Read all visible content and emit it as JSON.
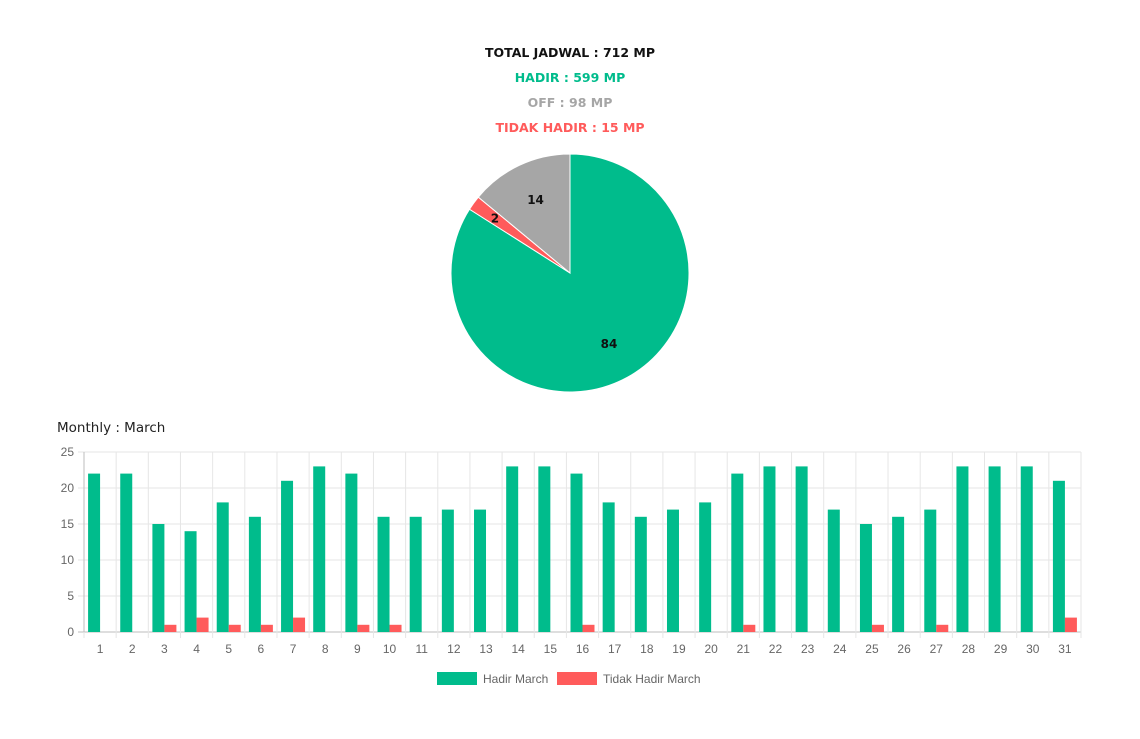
{
  "summary": {
    "total": "TOTAL JADWAL : 712 MP",
    "hadir": "HADIR : 599 MP",
    "off": "OFF : 98 MP",
    "tidak_hadir": "TIDAK HADIR : 15 MP"
  },
  "colors": {
    "hadir": "#00bc8c",
    "off": "#a6a6a6",
    "tidak_hadir": "#ff5b5b",
    "total": "#111111"
  },
  "monthly_title": "Monthly : March",
  "chart_data": [
    {
      "type": "pie",
      "slices": [
        {
          "name": "",
          "value": 84,
          "label": "84",
          "color": "#00bc8c"
        },
        {
          "name": "",
          "value": 2,
          "label": "2",
          "color": "#ff5b5b"
        },
        {
          "name": "",
          "value": 14,
          "label": "14",
          "color": "#a6a6a6"
        }
      ]
    },
    {
      "type": "bar",
      "title": "Monthly : March",
      "categories": [
        "1",
        "2",
        "3",
        "4",
        "5",
        "6",
        "7",
        "8",
        "9",
        "10",
        "11",
        "12",
        "13",
        "14",
        "15",
        "16",
        "17",
        "18",
        "19",
        "20",
        "21",
        "22",
        "23",
        "24",
        "25",
        "26",
        "27",
        "28",
        "29",
        "30",
        "31"
      ],
      "series": [
        {
          "name": "Hadir March",
          "color": "#00bc8c",
          "values": [
            22,
            22,
            15,
            14,
            18,
            16,
            21,
            23,
            22,
            16,
            16,
            17,
            17,
            23,
            23,
            22,
            18,
            16,
            17,
            18,
            22,
            23,
            23,
            17,
            15,
            16,
            17,
            23,
            23,
            23,
            21
          ]
        },
        {
          "name": "Tidak Hadir March",
          "color": "#ff5b5b",
          "values": [
            0,
            0,
            1,
            2,
            1,
            1,
            2,
            0,
            1,
            1,
            0,
            0,
            0,
            0,
            0,
            1,
            0,
            0,
            0,
            0,
            1,
            0,
            0,
            0,
            1,
            0,
            1,
            0,
            0,
            0,
            2
          ]
        }
      ],
      "yticks": [
        "0",
        "5",
        "10",
        "15",
        "20",
        "25"
      ],
      "ylim": [
        0,
        25
      ],
      "grid": true,
      "legend": "bottom"
    }
  ]
}
